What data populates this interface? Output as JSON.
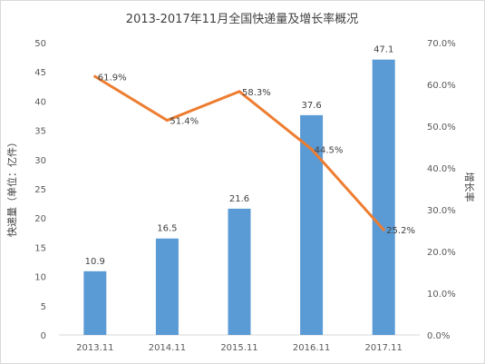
{
  "chart_data": {
    "type": "bar",
    "title": "2013-2017年11月全国快递量及增长率概况",
    "categories": [
      "2013.11",
      "2014.11",
      "2015.11",
      "2016.11",
      "2017.11"
    ],
    "ylabel": "快递量（单位：亿件）",
    "y2label": "增长率",
    "ylim": [
      0,
      50
    ],
    "y2lim": [
      0,
      70
    ],
    "yticks": [
      "0",
      "5",
      "10",
      "15",
      "20",
      "25",
      "30",
      "35",
      "40",
      "45",
      "50"
    ],
    "y2ticks": [
      "0.0%",
      "10.0%",
      "20.0%",
      "30.0%",
      "40.0%",
      "50.0%",
      "60.0%",
      "70.0%"
    ],
    "grid": false,
    "series": [
      {
        "kind": "bar",
        "axis": "left",
        "color": "#5b9bd5",
        "values": [
          10.9,
          16.5,
          21.6,
          37.6,
          47.1
        ],
        "labels": [
          "10.9",
          "16.5",
          "21.6",
          "37.6",
          "47.1"
        ]
      },
      {
        "kind": "line",
        "axis": "right",
        "color": "#ed7d31",
        "values": [
          61.9,
          51.4,
          58.3,
          44.5,
          25.2
        ],
        "labels": [
          "61.9%",
          "51.4%",
          "58.3%",
          "44.5%",
          "25.2%"
        ]
      }
    ]
  }
}
